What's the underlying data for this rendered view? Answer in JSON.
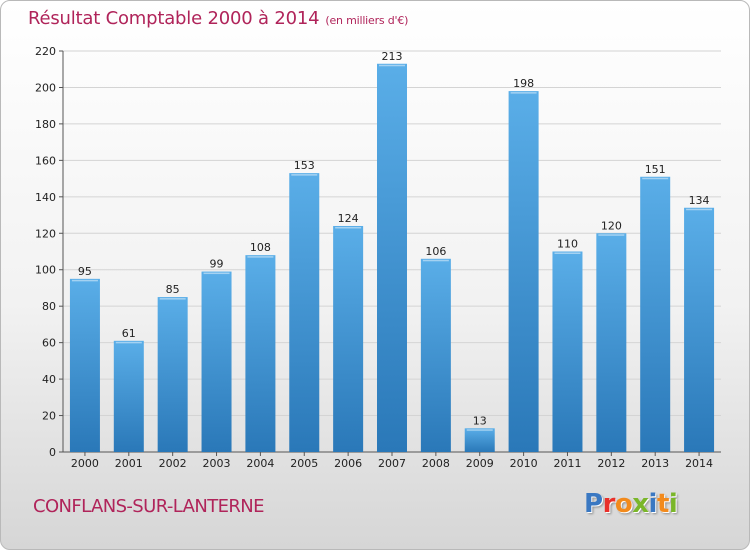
{
  "header": {
    "title": "Résultat Comptable 2000 à 2014",
    "subtitle": "(en milliers d'€)"
  },
  "footer": {
    "commune": "CONFLANS-SUR-LANTERNE",
    "logo_text": "Proxiti"
  },
  "colors": {
    "title": "#b0245a",
    "bar_top": "#5aaee8",
    "bar_bottom": "#2a78b8",
    "grid": "#d4d4d4"
  },
  "chart_data": {
    "type": "bar",
    "title": "Résultat Comptable 2000 à 2014",
    "subtitle": "(en milliers d'€)",
    "xlabel": "",
    "ylabel": "",
    "categories": [
      "2000",
      "2001",
      "2002",
      "2003",
      "2004",
      "2005",
      "2006",
      "2007",
      "2008",
      "2009",
      "2010",
      "2011",
      "2012",
      "2013",
      "2014"
    ],
    "values": [
      95,
      61,
      85,
      99,
      108,
      153,
      124,
      213,
      106,
      13,
      198,
      110,
      120,
      151,
      134
    ],
    "ylim": [
      0,
      220
    ],
    "yticks": [
      0,
      20,
      40,
      60,
      80,
      100,
      120,
      140,
      160,
      180,
      200,
      220
    ],
    "grid": true,
    "legend": "none",
    "data_labels": true
  }
}
